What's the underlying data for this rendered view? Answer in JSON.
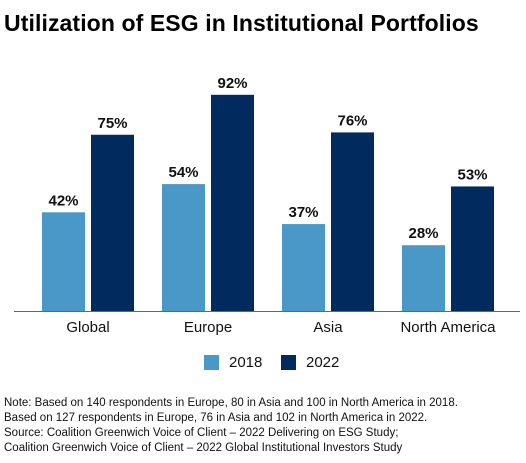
{
  "chart_data": {
    "type": "bar",
    "title": "Utilization of ESG in Institutional Portfolios",
    "categories": [
      "Global",
      "Europe",
      "Asia",
      "North America"
    ],
    "series": [
      {
        "name": "2018",
        "values": [
          42,
          54,
          37,
          28
        ],
        "labels": [
          "42%",
          "54%",
          "37%",
          "28%"
        ],
        "color": "#4a98c7"
      },
      {
        "name": "2022",
        "values": [
          75,
          92,
          76,
          53
        ],
        "labels": [
          "75%",
          "92%",
          "76%",
          "53%"
        ],
        "color": "#012a5e"
      }
    ],
    "ylim": [
      0,
      100
    ],
    "xlabel": "",
    "ylabel": "",
    "grid": false,
    "legend_position": "bottom"
  },
  "notes": [
    "Note: Based on 140 respondents in Europe, 80 in Asia and 100 in North America in 2018.",
    "Based on 127 respondents in Europe, 76 in Asia and 102 in North America in 2022.",
    "Source: Coalition Greenwich Voice of Client – 2022 Delivering on ESG Study;",
    "Coalition Greenwich Voice of Client – 2022 Global Institutional Investors Study"
  ]
}
